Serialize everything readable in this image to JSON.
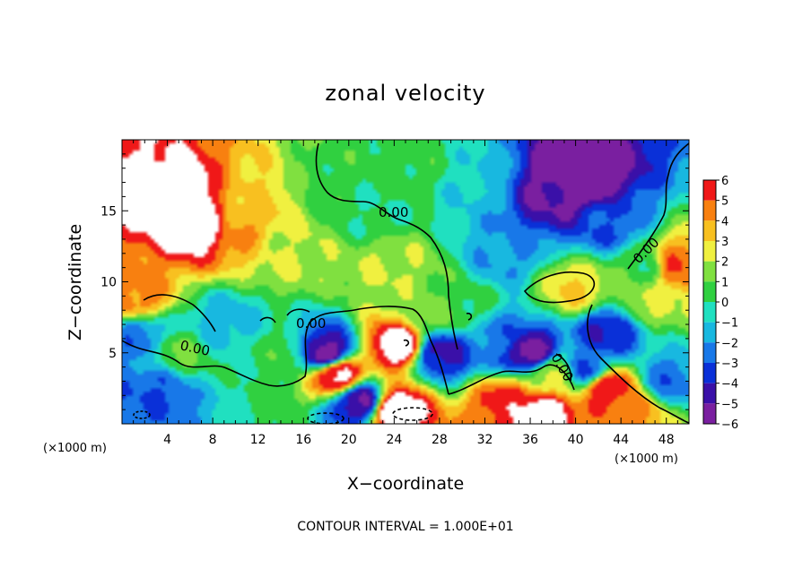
{
  "chart_data": {
    "type": "heatmap",
    "title": "zonal velocity",
    "xlabel": "X−coordinate",
    "ylabel": "Z−coordinate",
    "x_unit_left": "(×1000 m)",
    "x_unit_right": "(×1000 m)",
    "xlim": [
      0,
      50
    ],
    "ylim": [
      0,
      20
    ],
    "x_ticks": [
      4,
      8,
      12,
      16,
      20,
      24,
      28,
      32,
      36,
      40,
      44,
      48
    ],
    "y_ticks": [
      5,
      10,
      15
    ],
    "colorbar": {
      "levels": [
        -6,
        -5,
        -4,
        -3,
        -2,
        -1,
        0,
        1,
        2,
        3,
        4,
        5,
        6
      ],
      "labels": [
        "6",
        "5",
        "4",
        "3",
        "2",
        "1",
        "0",
        "−1",
        "−2",
        "−3",
        "−4",
        "−5",
        "−6"
      ],
      "colors": [
        "#7a1fa0",
        "#3a10a8",
        "#0a30d8",
        "#1878e8",
        "#18b8e0",
        "#20e0c0",
        "#30d040",
        "#80e040",
        "#f0f040",
        "#f8c020",
        "#f88010",
        "#f01818",
        "#f85050",
        "#ffffff"
      ]
    },
    "contour_label": "0.00",
    "contour_interval_text": "CONTOUR INTERVAL = 1.000E+01",
    "field_features": [
      {
        "x": 1,
        "z": 9,
        "value": 4.5
      },
      {
        "x": 5,
        "z": 16,
        "value": 7.0
      },
      {
        "x": 7,
        "z": 14,
        "value": 7.0
      },
      {
        "x": 10,
        "z": 14,
        "value": 4.0
      },
      {
        "x": 12,
        "z": 16,
        "value": 3.0
      },
      {
        "x": 15,
        "z": 12,
        "value": 2.0
      },
      {
        "x": 18,
        "z": 17,
        "value": 0.5
      },
      {
        "x": 22,
        "z": 15,
        "value": 0.0
      },
      {
        "x": 24,
        "z": 11,
        "value": 2.0
      },
      {
        "x": 26,
        "z": 18,
        "value": 0.5
      },
      {
        "x": 31,
        "z": 17,
        "value": -1.0
      },
      {
        "x": 34,
        "z": 12,
        "value": -2.0
      },
      {
        "x": 38,
        "z": 16,
        "value": -5.0
      },
      {
        "x": 40,
        "z": 17,
        "value": -7.0
      },
      {
        "x": 43,
        "z": 14,
        "value": -3.0
      },
      {
        "x": 46,
        "z": 11,
        "value": 0.5
      },
      {
        "x": 49,
        "z": 11,
        "value": 5.0
      },
      {
        "x": 40,
        "z": 9.5,
        "value": 3.0
      },
      {
        "x": 5,
        "z": 5,
        "value": 1.0
      },
      {
        "x": 3,
        "z": 2.5,
        "value": -3.0
      },
      {
        "x": 1.5,
        "z": 6,
        "value": -2.5
      },
      {
        "x": 9,
        "z": 7,
        "value": -1.5
      },
      {
        "x": 14,
        "z": 5,
        "value": 0.5
      },
      {
        "x": 18,
        "z": 5,
        "value": -5.5
      },
      {
        "x": 19,
        "z": 3.5,
        "value": 6.5
      },
      {
        "x": 21,
        "z": 1.5,
        "value": -5.0
      },
      {
        "x": 24.5,
        "z": 5.5,
        "value": 7.0
      },
      {
        "x": 24,
        "z": 1.0,
        "value": 7.0
      },
      {
        "x": 28,
        "z": 5,
        "value": -4.5
      },
      {
        "x": 30,
        "z": 8,
        "value": 0.5
      },
      {
        "x": 33,
        "z": 6,
        "value": -2.5
      },
      {
        "x": 34,
        "z": 1.5,
        "value": 5.5
      },
      {
        "x": 36,
        "z": 5,
        "value": -5.5
      },
      {
        "x": 37,
        "z": 0.8,
        "value": 7.0
      },
      {
        "x": 38,
        "z": 3.5,
        "value": 2.0
      },
      {
        "x": 41,
        "z": 4,
        "value": -3.0
      },
      {
        "x": 43,
        "z": 6.5,
        "value": -4.0
      },
      {
        "x": 43,
        "z": 2.5,
        "value": 6.0
      },
      {
        "x": 45,
        "z": 1,
        "value": 4.5
      },
      {
        "x": 48,
        "z": 3,
        "value": -2.5
      },
      {
        "x": 46.5,
        "z": 8.5,
        "value": 2.0
      },
      {
        "x": 27,
        "z": 8,
        "value": 1.5
      }
    ]
  }
}
